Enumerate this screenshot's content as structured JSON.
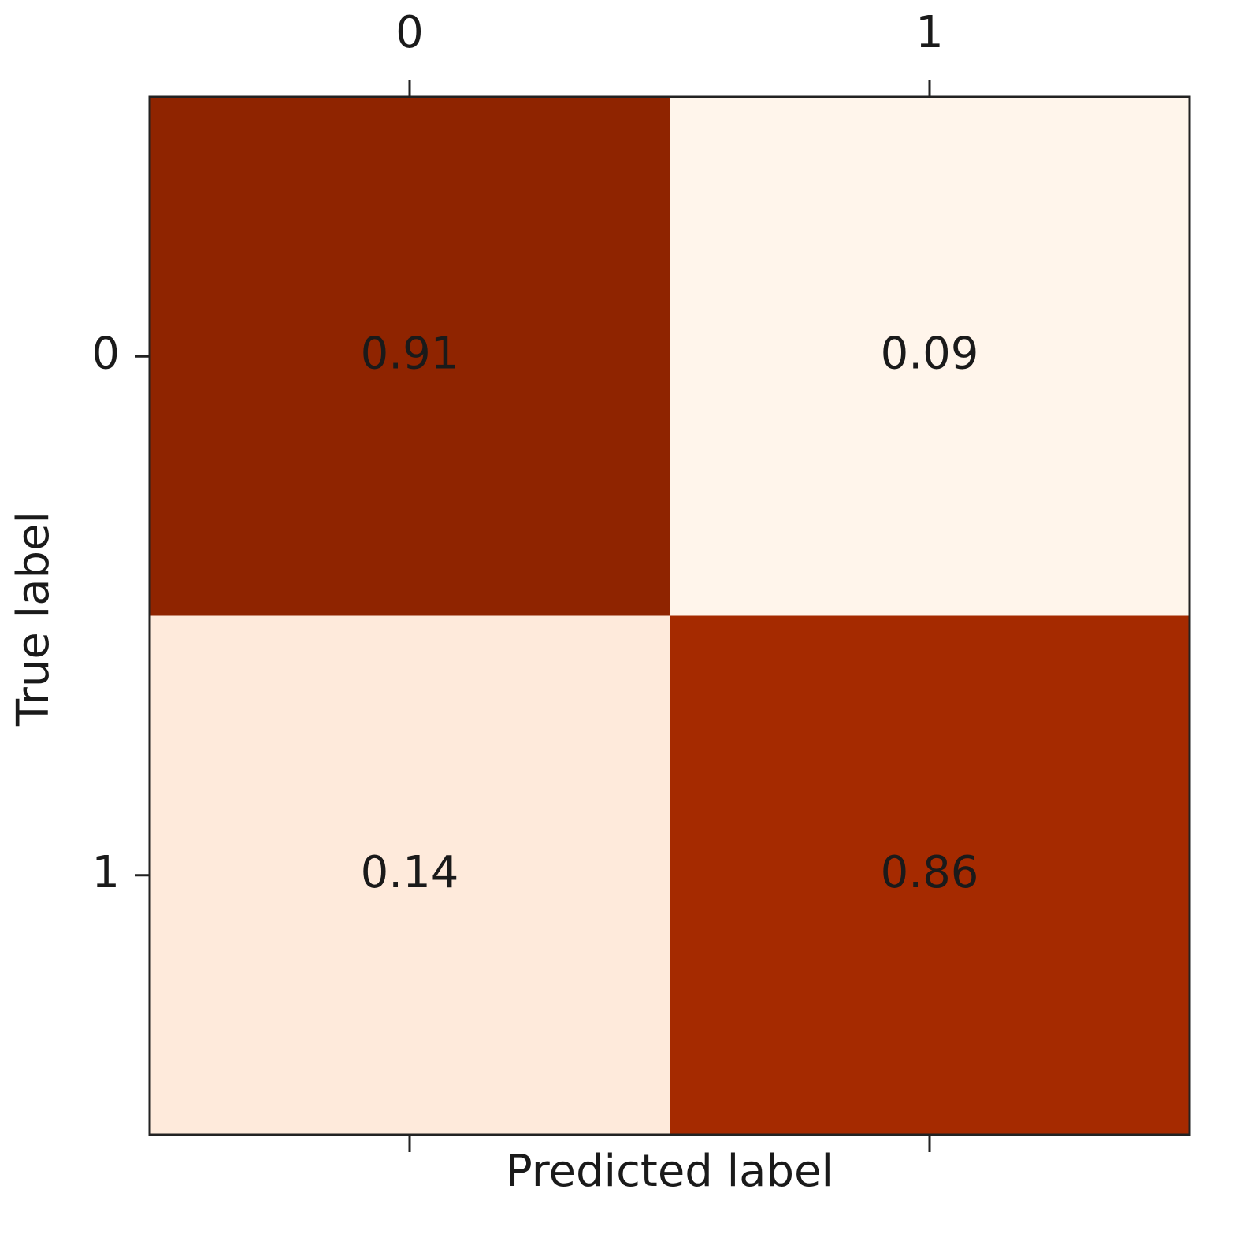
{
  "chart_data": {
    "type": "heatmap",
    "x_label": "Predicted label",
    "y_label": "True label",
    "x_categories": [
      "0",
      "1"
    ],
    "y_categories": [
      "0",
      "1"
    ],
    "values": [
      [
        0.91,
        0.09
      ],
      [
        0.14,
        0.86
      ]
    ],
    "colors": [
      [
        "#8f2400",
        "#fff5eb"
      ],
      [
        "#feeadb",
        "#a52a00"
      ]
    ],
    "x_ticks_position": "top"
  }
}
